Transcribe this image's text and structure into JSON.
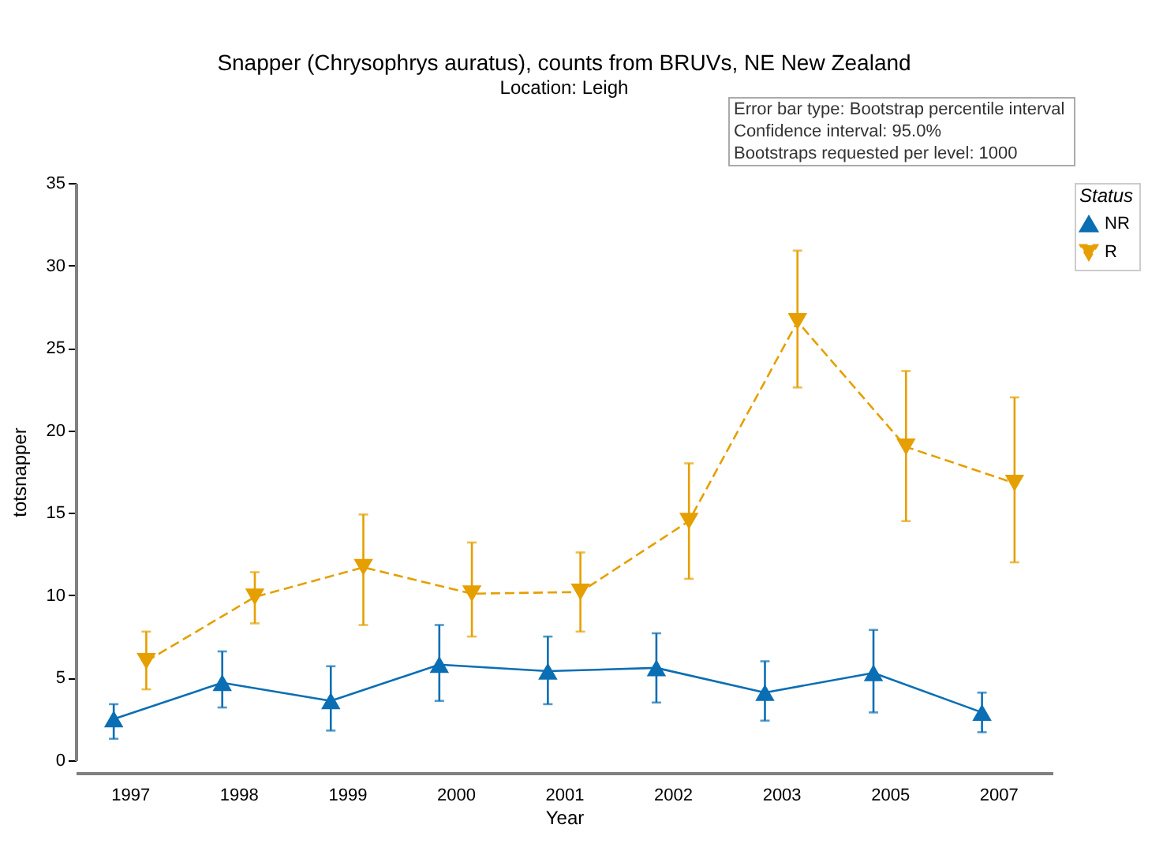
{
  "chart_data": {
    "type": "line",
    "title": "Snapper (Chrysophrys auratus), counts from BRUVs, NE New Zealand",
    "subtitle": "Location: Leigh",
    "xlabel": "Year",
    "ylabel": "totsnapper",
    "legend_title": "Status",
    "annotations": [
      "Error bar type: Bootstrap percentile interval",
      "Confidence interval: 95.0%",
      "Bootstraps requested per level: 1000"
    ],
    "categories": [
      "1997",
      "1998",
      "1999",
      "2000",
      "2001",
      "2002",
      "2003",
      "2005",
      "2007"
    ],
    "series": [
      {
        "name": "NR",
        "color": "#0a6eb4",
        "marker": "triangle",
        "line_style": "solid",
        "values": [
          2.5,
          4.7,
          3.6,
          5.8,
          5.4,
          5.6,
          4.1,
          5.3,
          2.9
        ],
        "errors": [
          [
            1.3,
            3.4
          ],
          [
            3.2,
            6.6
          ],
          [
            1.8,
            5.7
          ],
          [
            3.6,
            8.2
          ],
          [
            3.4,
            7.5
          ],
          [
            3.5,
            7.7
          ],
          [
            2.4,
            6.0
          ],
          [
            2.9,
            7.9
          ],
          [
            1.7,
            4.1
          ]
        ]
      },
      {
        "name": "R",
        "color": "#e69f00",
        "marker": "triangle-down",
        "line_style": "dashed",
        "values": [
          6.0,
          9.9,
          11.7,
          10.1,
          10.2,
          14.5,
          26.6,
          19.0,
          16.8
        ],
        "errors": [
          [
            4.3,
            7.8
          ],
          [
            8.3,
            11.4
          ],
          [
            8.2,
            14.9
          ],
          [
            7.5,
            13.2
          ],
          [
            7.8,
            12.6
          ],
          [
            11.0,
            18.0
          ],
          [
            22.6,
            30.9
          ],
          [
            14.5,
            23.6
          ],
          [
            12.0,
            22.0
          ]
        ]
      }
    ],
    "ylim": [
      0,
      35
    ],
    "yticks": [
      0,
      5,
      10,
      15,
      20,
      25,
      30,
      35
    ],
    "grid": false,
    "legend": "top right"
  }
}
